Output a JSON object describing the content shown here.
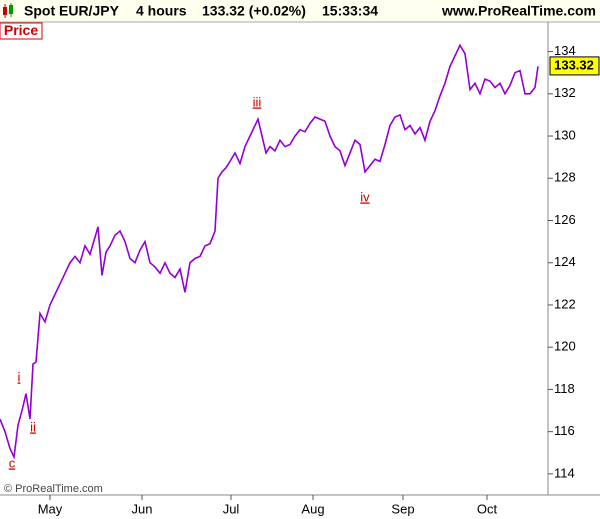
{
  "header": {
    "instrument": "Spot EUR/JPY",
    "interval": "4 hours",
    "quote": "133.32 (+0.02%)",
    "time": "15:33:34",
    "site": "www.ProRealTime.com"
  },
  "panel_label": "Price",
  "copyright": "© ProRealTime.com",
  "chart_data": {
    "type": "line",
    "series": [
      {
        "color": "#9400d3",
        "x": [
          0,
          5,
          10,
          14,
          18,
          22,
          26,
          30,
          33,
          36,
          40,
          45,
          50,
          55,
          60,
          65,
          70,
          75,
          80,
          85,
          90,
          95,
          98,
          102,
          106,
          110,
          115,
          120,
          125,
          130,
          135,
          140,
          145,
          150,
          155,
          160,
          165,
          170,
          175,
          180,
          185,
          190,
          195,
          200,
          205,
          210,
          215,
          218,
          222,
          226,
          230,
          235,
          240,
          245,
          250,
          255,
          258,
          262,
          266,
          270,
          275,
          280,
          285,
          290,
          295,
          300,
          305,
          310,
          315,
          320,
          325,
          330,
          335,
          340,
          345,
          350,
          355,
          360,
          365,
          370,
          375,
          380,
          385,
          390,
          395,
          400,
          405,
          410,
          415,
          420,
          425,
          430,
          435,
          440,
          445,
          450,
          455,
          460,
          465,
          470,
          475,
          480,
          485,
          490,
          495,
          500,
          505,
          510,
          515,
          520,
          525,
          530,
          535,
          538
        ],
        "values": [
          116.6,
          116.0,
          115.2,
          114.8,
          116.3,
          117.0,
          117.8,
          116.6,
          119.2,
          119.3,
          121.6,
          121.2,
          122.0,
          122.5,
          123.0,
          123.5,
          124.0,
          124.3,
          124.0,
          124.8,
          124.4,
          125.2,
          125.7,
          123.4,
          124.5,
          124.8,
          125.3,
          125.5,
          125.0,
          124.2,
          124.0,
          124.6,
          125.0,
          124.0,
          123.8,
          123.5,
          124.0,
          123.5,
          123.3,
          123.7,
          122.6,
          124.0,
          124.2,
          124.3,
          124.8,
          124.9,
          125.5,
          128.0,
          128.3,
          128.5,
          128.8,
          129.2,
          128.7,
          129.5,
          130.0,
          130.5,
          130.8,
          130.0,
          129.2,
          129.5,
          129.3,
          129.8,
          129.5,
          129.6,
          130.0,
          130.3,
          130.2,
          130.6,
          130.9,
          130.8,
          130.7,
          130.0,
          129.5,
          129.3,
          128.6,
          129.2,
          129.8,
          129.6,
          128.3,
          128.6,
          128.9,
          128.8,
          129.6,
          130.5,
          130.9,
          131.0,
          130.3,
          130.5,
          130.1,
          130.4,
          129.8,
          130.7,
          131.2,
          131.9,
          132.5,
          133.3,
          133.8,
          134.3,
          133.9,
          132.2,
          132.5,
          132.0,
          132.7,
          132.6,
          132.3,
          132.5,
          132.0,
          132.4,
          133.0,
          133.1,
          132.0,
          132.0,
          132.3,
          133.3
        ]
      }
    ],
    "last_value": 133.32,
    "annotations": [
      "c",
      "i",
      "ii",
      "iii",
      "iv"
    ],
    "xlim": [
      0,
      548
    ],
    "xticks": [
      {
        "value": 50,
        "label": "May"
      },
      {
        "value": 142,
        "label": "Jun"
      },
      {
        "value": 231,
        "label": "Jul"
      },
      {
        "value": 313,
        "label": "Aug"
      },
      {
        "value": 403,
        "label": "Sep"
      },
      {
        "value": 487,
        "label": "Oct"
      }
    ],
    "ylim": [
      113,
      135.4
    ],
    "yticks": [
      114,
      116,
      118,
      120,
      122,
      124,
      126,
      128,
      130,
      132,
      134
    ]
  }
}
